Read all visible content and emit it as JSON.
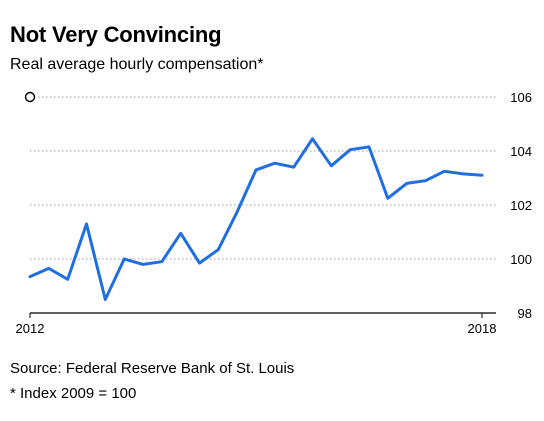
{
  "chart_data": {
    "type": "line",
    "title": "Not Very Convincing",
    "subtitle": "Real average hourly compensation*",
    "x_tick_labels": [
      "2012",
      "2018"
    ],
    "y_ticks": [
      98,
      100,
      102,
      104,
      106
    ],
    "ylim": [
      98,
      106
    ],
    "grid": "horizontal dotted",
    "y_axis_side": "right",
    "line_color": "#1f6fe0",
    "series": [
      {
        "values": [
          99.35,
          99.65,
          99.25,
          101.3,
          98.5,
          100.0,
          99.8,
          99.9,
          100.95,
          99.85,
          100.35,
          101.75,
          103.3,
          103.55,
          103.4,
          104.45,
          103.45,
          104.05,
          104.15,
          102.25,
          102.8,
          102.9,
          103.25,
          103.15,
          103.1
        ]
      }
    ],
    "source": "Source: Federal Reserve Bank of St. Louis",
    "footnote": "* Index 2009 = 100"
  }
}
